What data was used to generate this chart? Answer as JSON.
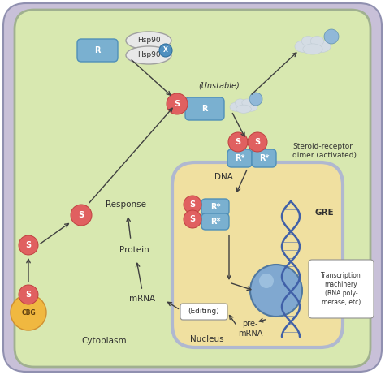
{
  "bg_outer": "#c8c0d8",
  "bg_cell": "#d8e8b0",
  "bg_nucleus": "#f0e0a0",
  "nucleus_border": "#b0b8d0",
  "receptor_color": "#7ab0d0",
  "steroid_color": "#e06060",
  "cbg_color": "#f0b840",
  "hsp90_color": "#e8e8e8",
  "dna_color": "#4060a8",
  "sphere_color": "#80a8d0",
  "arrow_color": "#404040",
  "text_color": "#303030",
  "cloud_color": "#d4dce4",
  "cloud_blue": "#90b8d8",
  "label_unstable": "(Unstable)",
  "label_dimer": "Steroid-receptor\ndimer (activated)",
  "label_gre": "GRE",
  "label_dna": "DNA",
  "label_nucleus": "Nucleus",
  "label_cytoplasm": "Cytoplasm",
  "label_response": "Response",
  "label_protein": "Protein",
  "label_mrna": "mRNA",
  "label_premrna": "pre-\nmRNA",
  "label_editing": "(Editing)",
  "label_transcription": "Transcription\nmachinery\n(RNA poly-\nmerase, etc)",
  "label_cbg": "CBG",
  "label_hsp90_1": "Hsp90",
  "label_hsp90_2": "Hsp90",
  "label_r": "R",
  "label_r_star": "R*"
}
